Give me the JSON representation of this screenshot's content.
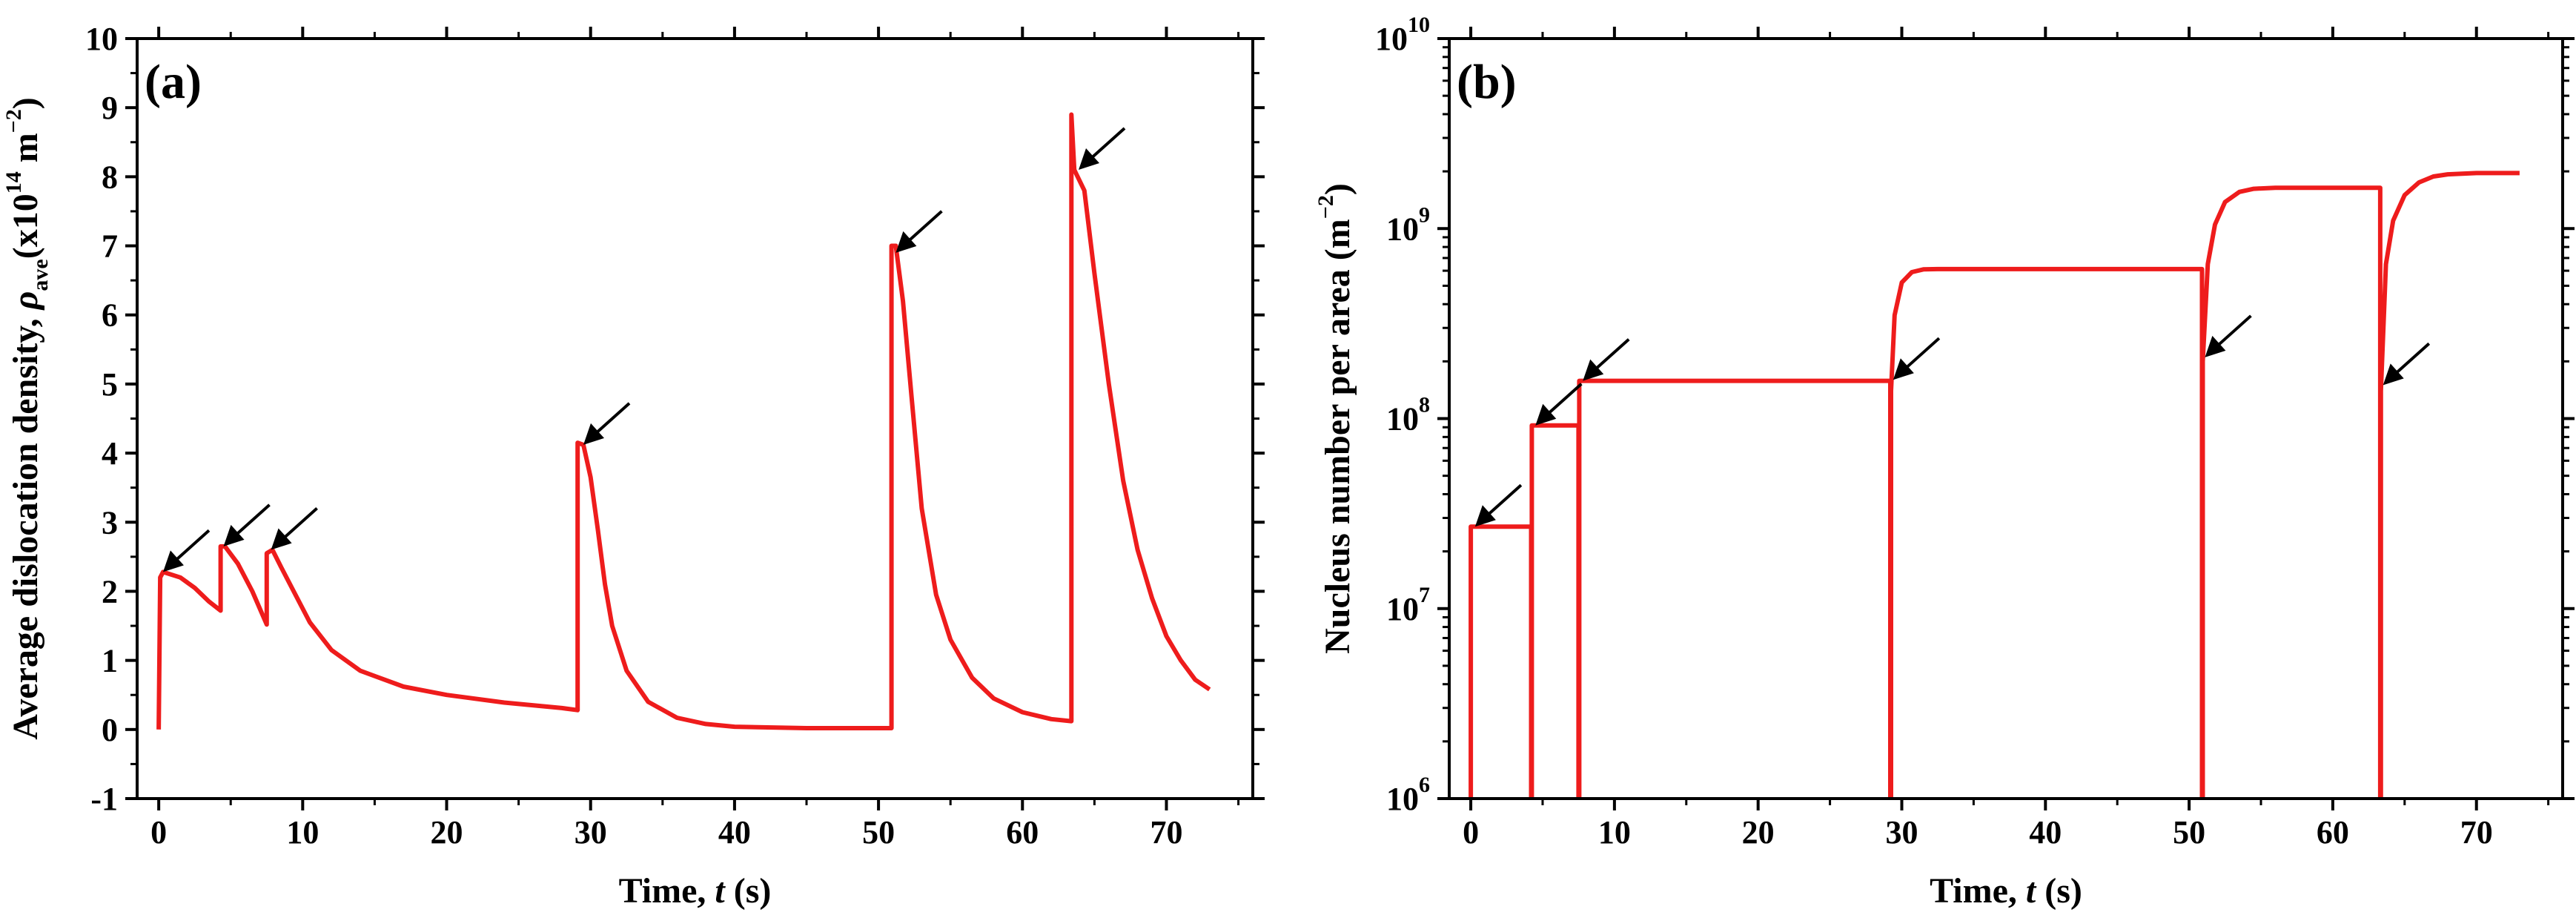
{
  "colors": {
    "curve": "#ee1c1c",
    "axis": "#000000",
    "arrow": "#000000"
  },
  "chart_data": [
    {
      "type": "line",
      "panel_label": "(a)",
      "xlabel": {
        "main": "Time, ",
        "var": "t",
        "unit": " (s)"
      },
      "ylabel": {
        "main": "Average dislocation density, ",
        "symbol": "ρ",
        "subscript": "ave",
        "unit_open": "(x10",
        "unit_exp": "14",
        "unit_mid": " m",
        "unit_exp2": "−2",
        "unit_close": ")"
      },
      "xlim": [
        -1.5,
        76
      ],
      "ylim": [
        -1,
        10
      ],
      "xticks": [
        0,
        10,
        20,
        30,
        40,
        50,
        60,
        70
      ],
      "yticks": [
        -1,
        0,
        1,
        2,
        3,
        4,
        5,
        6,
        7,
        8,
        9,
        10
      ],
      "series": [
        {
          "name": "average dislocation density",
          "points": [
            [
              0,
              0
            ],
            [
              0.1,
              2.2
            ],
            [
              0.3,
              2.28
            ],
            [
              1.5,
              2.2
            ],
            [
              2.5,
              2.05
            ],
            [
              3.5,
              1.85
            ],
            [
              4.3,
              1.72
            ],
            [
              4.3,
              2.65
            ],
            [
              4.6,
              2.65
            ],
            [
              5.5,
              2.4
            ],
            [
              6.5,
              2.0
            ],
            [
              7.5,
              1.52
            ],
            [
              7.5,
              2.55
            ],
            [
              7.9,
              2.6
            ],
            [
              8.5,
              2.35
            ],
            [
              9.5,
              1.95
            ],
            [
              10.5,
              1.55
            ],
            [
              12,
              1.15
            ],
            [
              14,
              0.85
            ],
            [
              17,
              0.62
            ],
            [
              20,
              0.5
            ],
            [
              24,
              0.39
            ],
            [
              28,
              0.31
            ],
            [
              29.1,
              0.28
            ],
            [
              29.1,
              4.15
            ],
            [
              29.5,
              4.12
            ],
            [
              30,
              3.65
            ],
            [
              30.5,
              2.9
            ],
            [
              31,
              2.1
            ],
            [
              31.5,
              1.5
            ],
            [
              32.5,
              0.85
            ],
            [
              34,
              0.4
            ],
            [
              36,
              0.17
            ],
            [
              38,
              0.08
            ],
            [
              40,
              0.04
            ],
            [
              45,
              0.02
            ],
            [
              50.9,
              0.02
            ],
            [
              50.9,
              7.0
            ],
            [
              51.2,
              7.0
            ],
            [
              51.7,
              6.2
            ],
            [
              52.3,
              4.8
            ],
            [
              53,
              3.2
            ],
            [
              54,
              1.95
            ],
            [
              55,
              1.3
            ],
            [
              56.5,
              0.75
            ],
            [
              58,
              0.45
            ],
            [
              60,
              0.25
            ],
            [
              62,
              0.15
            ],
            [
              63.4,
              0.12
            ],
            [
              63.4,
              8.9
            ],
            [
              63.6,
              8.1
            ],
            [
              64.3,
              7.8
            ],
            [
              65,
              6.6
            ],
            [
              66,
              5.0
            ],
            [
              67,
              3.6
            ],
            [
              68,
              2.6
            ],
            [
              69,
              1.9
            ],
            [
              70,
              1.35
            ],
            [
              71,
              1.0
            ],
            [
              72,
              0.72
            ],
            [
              73,
              0.58
            ]
          ]
        }
      ],
      "arrows": [
        [
          0.3,
          2.28
        ],
        [
          4.5,
          2.65
        ],
        [
          7.8,
          2.6
        ],
        [
          29.5,
          4.12
        ],
        [
          51.2,
          6.9
        ],
        [
          63.9,
          8.1
        ]
      ]
    },
    {
      "type": "line",
      "panel_label": "(b)",
      "xlabel": {
        "main": "Time, ",
        "var": "t",
        "unit": " (s)"
      },
      "ylabel": {
        "main": "Nucleus number per area (m",
        "exp": "−2",
        "close": ")"
      },
      "yscale": "log",
      "xlim": [
        -1.5,
        76
      ],
      "ylim": [
        1000000,
        10000000000
      ],
      "xticks": [
        0,
        10,
        20,
        30,
        40,
        50,
        60,
        70
      ],
      "yticks": [
        {
          "value": 1000000,
          "base": "10",
          "exp": "6"
        },
        {
          "value": 10000000,
          "base": "10",
          "exp": "7"
        },
        {
          "value": 100000000,
          "base": "10",
          "exp": "8"
        },
        {
          "value": 1000000000,
          "base": "10",
          "exp": "9"
        },
        {
          "value": 10000000000,
          "base": "10",
          "exp": "10"
        }
      ],
      "series": [
        {
          "name": "nucleus number per area",
          "points": [
            [
              0,
              1000000
            ],
            [
              0,
              27000000
            ],
            [
              4.2,
              27000000
            ],
            [
              4.2,
              1000000
            ],
            [
              4.25,
              1000000
            ],
            [
              4.25,
              92000000
            ],
            [
              7.5,
              92000000
            ],
            [
              7.5,
              1000000
            ],
            [
              7.55,
              1000000
            ],
            [
              7.55,
              158000000
            ],
            [
              29.2,
              158000000
            ],
            [
              29.2,
              1000000
            ],
            [
              29.25,
              1000000
            ],
            [
              29.25,
              140000000
            ],
            [
              29.5,
              350000000
            ],
            [
              30,
              520000000
            ],
            [
              30.7,
              590000000
            ],
            [
              31.5,
              610000000
            ],
            [
              32.5,
              612000000
            ],
            [
              50.9,
              612000000
            ],
            [
              50.9,
              1000000
            ],
            [
              50.95,
              1000000
            ],
            [
              50.95,
              200000000
            ],
            [
              51.3,
              650000000
            ],
            [
              51.8,
              1050000000
            ],
            [
              52.5,
              1380000000
            ],
            [
              53.5,
              1560000000
            ],
            [
              54.5,
              1620000000
            ],
            [
              56,
              1640000000
            ],
            [
              63.3,
              1640000000
            ],
            [
              63.3,
              1000000
            ],
            [
              63.35,
              1000000
            ],
            [
              63.35,
              140000000
            ],
            [
              63.7,
              650000000
            ],
            [
              64.2,
              1100000000
            ],
            [
              65,
              1500000000
            ],
            [
              66,
              1750000000
            ],
            [
              67,
              1880000000
            ],
            [
              68,
              1930000000
            ],
            [
              70,
              1960000000
            ],
            [
              73,
              1960000000
            ]
          ]
        }
      ],
      "arrows": [
        [
          0.3,
          27000000
        ],
        [
          4.5,
          92000000
        ],
        [
          7.8,
          158000000
        ],
        [
          29.4,
          160000000
        ],
        [
          51.1,
          210000000
        ],
        [
          63.5,
          150000000
        ]
      ]
    }
  ]
}
